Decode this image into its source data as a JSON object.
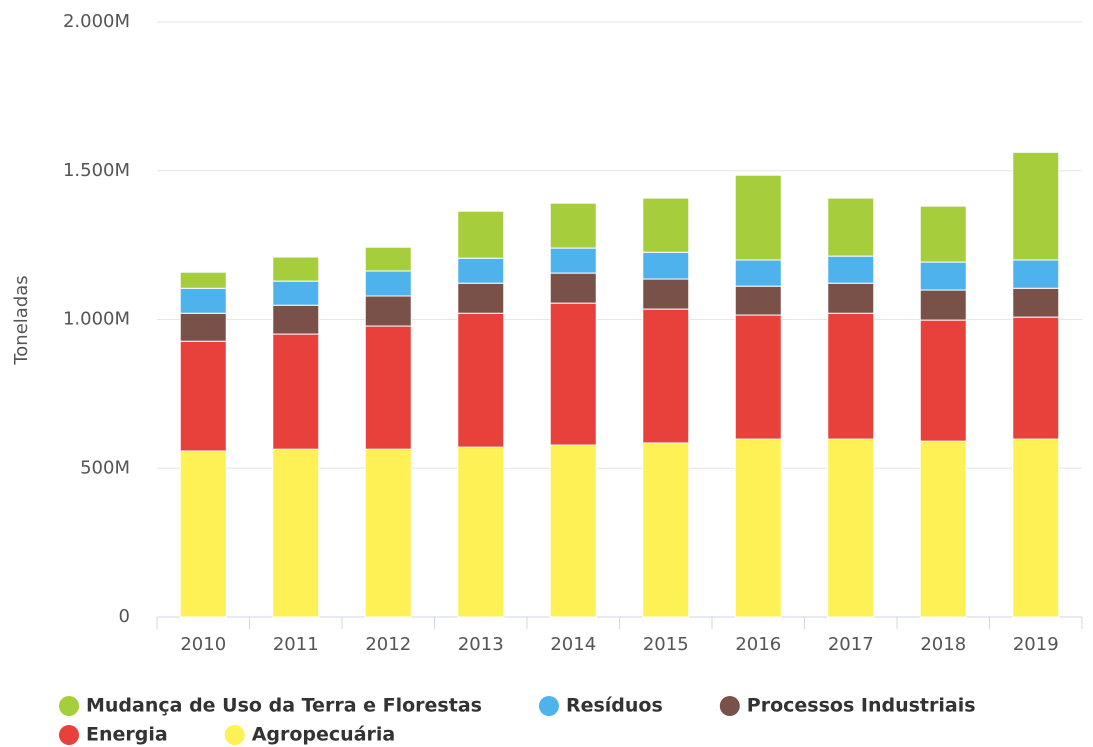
{
  "chart_data": {
    "type": "stacked-bar",
    "y_label": "Toneladas",
    "categories": [
      "2010",
      "2011",
      "2012",
      "2013",
      "2014",
      "2015",
      "2016",
      "2017",
      "2018",
      "2019"
    ],
    "series": [
      {
        "name": "Mudança de Uso da Terra e Florestas",
        "color": "#a5cd3c",
        "values": [
          54,
          81,
          80,
          158,
          151,
          182,
          285,
          195,
          188,
          362
        ]
      },
      {
        "name": "Resíduos",
        "color": "#4eb3ec",
        "values": [
          84,
          81,
          84,
          84,
          84,
          90,
          88,
          91,
          94,
          95
        ]
      },
      {
        "name": "Processos Industriais",
        "color": "#7a5148",
        "values": [
          94,
          97,
          101,
          101,
          101,
          101,
          97,
          101,
          101,
          97
        ]
      },
      {
        "name": "Energia",
        "color": "#e8403a",
        "values": [
          369,
          387,
          414,
          450,
          477,
          450,
          417,
          423,
          407,
          410
        ]
      },
      {
        "name": "Agropecuária",
        "color": "#fdf155",
        "values": [
          558,
          564,
          564,
          571,
          578,
          585,
          598,
          598,
          591,
          598
        ]
      }
    ],
    "ylim": [
      0,
      2000
    ],
    "yticks": [
      {
        "value": 0,
        "label": "0"
      },
      {
        "value": 500,
        "label": "500M"
      },
      {
        "value": 1000,
        "label": "1.000M"
      },
      {
        "value": 1500,
        "label": "1.500M"
      },
      {
        "value": 2000,
        "label": "2.000M"
      }
    ],
    "grid": true
  }
}
